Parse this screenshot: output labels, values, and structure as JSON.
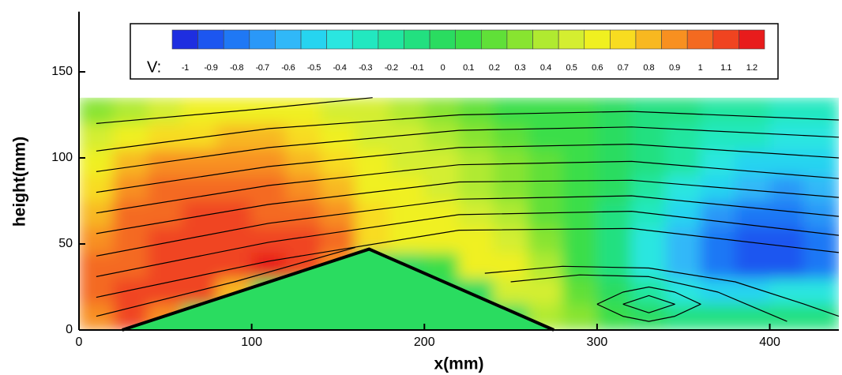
{
  "chart_data": {
    "type": "contour",
    "xlabel": "x(mm)",
    "ylabel": "height(mm)",
    "xlim": [
      0,
      440
    ],
    "ylim": [
      0,
      185
    ],
    "xticks": [
      0,
      100,
      200,
      300,
      400
    ],
    "yticks": [
      0,
      50,
      100,
      150
    ],
    "colorbar": {
      "label": "V:",
      "levels": [
        -1,
        -0.9,
        -0.8,
        -0.7,
        -0.6,
        -0.5,
        -0.4,
        -0.3,
        -0.2,
        -0.1,
        0,
        0.1,
        0.2,
        0.3,
        0.4,
        0.5,
        0.6,
        0.7,
        0.8,
        0.9,
        1,
        1.1,
        1.2
      ],
      "colors": [
        "#1e2ee0",
        "#1c56f0",
        "#1f78f5",
        "#2a98f8",
        "#30b8f8",
        "#26d4f0",
        "#2ae6e0",
        "#22e8c0",
        "#20e6a0",
        "#22e080",
        "#2adc60",
        "#3ade48",
        "#60e038",
        "#88e430",
        "#b0ea30",
        "#d4ee30",
        "#f0f020",
        "#f8dc20",
        "#f8b820",
        "#f89020",
        "#f46a20",
        "#f04420",
        "#e81c1c"
      ]
    },
    "field": {
      "x": [
        10,
        30,
        50,
        70,
        90,
        110,
        130,
        150,
        170,
        190,
        210,
        230,
        250,
        270,
        290,
        310,
        330,
        350,
        370,
        390,
        410,
        430
      ],
      "y": [
        7.5,
        22.5,
        37.5,
        52.5,
        67.5,
        82.5,
        97.5,
        112.5,
        127.5
      ],
      "values": [
        [
          0.9,
          1.1,
          0.9,
          0,
          0,
          0,
          0,
          0,
          0,
          0,
          0,
          0,
          0,
          0.4,
          0.3,
          0.1,
          0,
          -0.1,
          -0.1,
          -0.1,
          -0.1,
          -0.1
        ],
        [
          1.0,
          1.1,
          1.1,
          1.1,
          0.8,
          0,
          0,
          0,
          0,
          0,
          0,
          0,
          0.5,
          0.5,
          0.2,
          0,
          -0.2,
          -0.4,
          -0.5,
          -0.5,
          -0.4,
          -0.4
        ],
        [
          1.0,
          1.0,
          1.1,
          1.1,
          1.1,
          1.2,
          1.1,
          0.9,
          0,
          0,
          0.1,
          0.6,
          0.6,
          0.4,
          0.1,
          -0.1,
          -0.4,
          -0.6,
          -0.8,
          -0.9,
          -0.9,
          -0.8
        ],
        [
          0.9,
          1.0,
          1.1,
          1.1,
          1.1,
          1.1,
          1.1,
          1.0,
          0.7,
          0.6,
          0.6,
          0.6,
          0.5,
          0.3,
          0.1,
          -0.1,
          -0.4,
          -0.6,
          -0.8,
          -0.9,
          -0.9,
          -0.8
        ],
        [
          0.8,
          1.0,
          1.0,
          1.1,
          1.1,
          1.0,
          1.0,
          0.9,
          0.7,
          0.6,
          0.6,
          0.5,
          0.4,
          0.2,
          0.1,
          -0.1,
          -0.3,
          -0.5,
          -0.7,
          -0.8,
          -0.8,
          -0.7
        ],
        [
          0.7,
          0.9,
          1.0,
          1.0,
          1.0,
          1.0,
          0.9,
          0.8,
          0.6,
          0.6,
          0.5,
          0.4,
          0.3,
          0.2,
          0.1,
          0,
          -0.2,
          -0.4,
          -0.5,
          -0.6,
          -0.7,
          -0.6
        ],
        [
          0.6,
          0.8,
          0.9,
          0.9,
          0.9,
          0.9,
          0.8,
          0.7,
          0.6,
          0.5,
          0.5,
          0.4,
          0.3,
          0.2,
          0.1,
          0,
          -0.1,
          -0.2,
          -0.4,
          -0.5,
          -0.5,
          -0.5
        ],
        [
          0.5,
          0.6,
          0.7,
          0.7,
          0.8,
          0.8,
          0.7,
          0.6,
          0.5,
          0.5,
          0.4,
          0.3,
          0.2,
          0.1,
          0.1,
          0,
          -0.1,
          -0.2,
          -0.3,
          -0.3,
          -0.4,
          -0.4
        ],
        [
          0.3,
          0.4,
          0.5,
          0.6,
          0.6,
          0.6,
          0.6,
          0.5,
          0.5,
          0.4,
          0.3,
          0.2,
          0.1,
          0.1,
          0.1,
          0,
          -0.1,
          -0.1,
          -0.2,
          -0.2,
          -0.3,
          -0.3
        ]
      ]
    },
    "obstacle": {
      "x": [
        25,
        168,
        275
      ],
      "y": [
        0,
        47,
        0
      ]
    },
    "streamlines": [
      {
        "x": [
          10,
          100,
          170
        ],
        "y": [
          120,
          128,
          135
        ]
      },
      {
        "x": [
          10,
          110,
          220,
          320,
          440
        ],
        "y": [
          104,
          117,
          125,
          127,
          122
        ]
      },
      {
        "x": [
          10,
          110,
          220,
          320,
          440
        ],
        "y": [
          92,
          106,
          116,
          118,
          112
        ]
      },
      {
        "x": [
          10,
          110,
          220,
          320,
          440
        ],
        "y": [
          80,
          95,
          106,
          108,
          100
        ]
      },
      {
        "x": [
          10,
          110,
          220,
          320,
          440
        ],
        "y": [
          68,
          84,
          96,
          98,
          88
        ]
      },
      {
        "x": [
          10,
          110,
          220,
          320,
          440
        ],
        "y": [
          56,
          73,
          86,
          87,
          77
        ]
      },
      {
        "x": [
          10,
          110,
          220,
          320,
          440
        ],
        "y": [
          43,
          62,
          76,
          78,
          66
        ]
      },
      {
        "x": [
          10,
          110,
          220,
          320,
          440
        ],
        "y": [
          31,
          51,
          67,
          69,
          55
        ]
      },
      {
        "x": [
          10,
          110,
          220,
          320,
          440
        ],
        "y": [
          19,
          40,
          58,
          59,
          45
        ]
      },
      {
        "x": [
          10,
          90,
          160
        ],
        "y": [
          8,
          28,
          48
        ]
      },
      {
        "x": [
          235,
          280,
          330,
          380,
          420,
          440
        ],
        "y": [
          33,
          37,
          36,
          28,
          15,
          8
        ]
      },
      {
        "x": [
          250,
          290,
          330,
          370,
          410
        ],
        "y": [
          28,
          32,
          31,
          22,
          5
        ]
      },
      {
        "x": [
          300,
          315,
          330,
          345,
          360,
          345,
          330,
          315,
          300
        ],
        "y": [
          15,
          22,
          25,
          22,
          15,
          8,
          5,
          8,
          15
        ]
      },
      {
        "x": [
          315,
          330,
          345,
          330,
          315
        ],
        "y": [
          15,
          20,
          15,
          10,
          15
        ]
      }
    ]
  }
}
